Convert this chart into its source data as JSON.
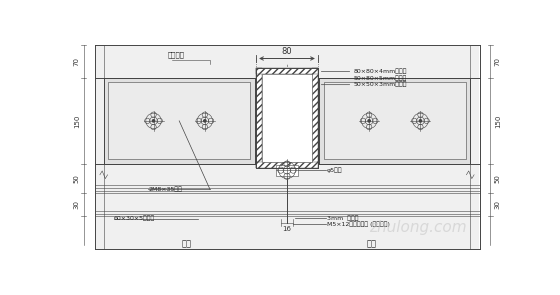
{
  "bg_color": "#ffffff",
  "line_color": "#444444",
  "dim_color": "#333333",
  "text_color": "#222222",
  "panel_fill": "#e8e8e8",
  "annotations_right": [
    "80×80×4mm角铝模",
    "50×80×5mm角铝模",
    "50×50×3mm角铝模"
  ],
  "ann_left_bolt": "2M8×35螺栓",
  "ann_left_angle": "60×30×5角铝模",
  "ann_center_bolt": "φ5铜杆",
  "ann_3mm": "3mm  缓冲材",
  "ann_m5": "M5×12不锈钢螺栓 (位置可调)",
  "ann_bottom_left": "截计",
  "ann_bottom_right": "截计",
  "label_structure": "结构技术",
  "dim_80": "80",
  "dim_70": "70",
  "dim_150": "150",
  "dim_50": "50",
  "dim_30": "30",
  "dim_16": "16"
}
